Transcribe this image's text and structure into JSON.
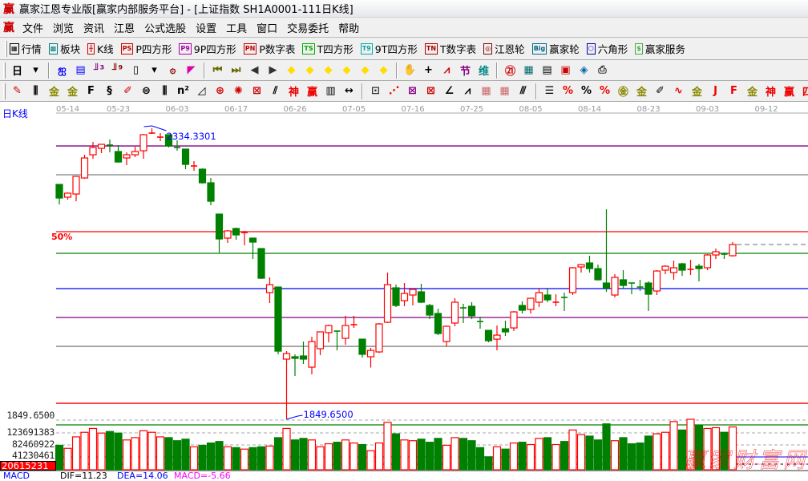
{
  "window": {
    "title": "赢家江恩专业版[赢家内部服务平台] - [上证指数  SH1A0001-111日K线]",
    "logo": "赢"
  },
  "menu": {
    "logo": "赢",
    "items": [
      "文件",
      "浏览",
      "资讯",
      "江恩",
      "公式选股",
      "设置",
      "工具",
      "窗口",
      "交易委托",
      "帮助"
    ]
  },
  "toolbar1": [
    {
      "icon": "quote-table-icon",
      "badge": "▦",
      "color": "#000",
      "label": "行情"
    },
    {
      "icon": "sector-grid-icon",
      "badge": "▩",
      "color": "#008080",
      "label": "板块"
    },
    {
      "icon": "candlestick-icon",
      "badge": "╫",
      "color": "#c00",
      "label": "K线"
    },
    {
      "icon": "ps-icon",
      "badge": "PS",
      "color": "#c00",
      "label": "P四方形"
    },
    {
      "icon": "p9-icon",
      "badge": "P9",
      "color": "#a0a",
      "label": "9P四方形"
    },
    {
      "icon": "pn-icon",
      "badge": "PN",
      "color": "#c00",
      "label": "P数字表"
    },
    {
      "icon": "ts-icon",
      "badge": "TS",
      "color": "#0a0",
      "label": "T四方形"
    },
    {
      "icon": "t9-icon",
      "badge": "T9",
      "color": "#0aa",
      "label": "9T四方形"
    },
    {
      "icon": "tn-icon",
      "badge": "TN",
      "color": "#a00",
      "label": "T数字表"
    },
    {
      "icon": "gann-wheel-icon",
      "badge": "◎",
      "color": "#800",
      "label": "江恩轮"
    },
    {
      "icon": "big-wheel-icon",
      "badge": "Big",
      "color": "#068",
      "label": "赢家轮"
    },
    {
      "icon": "hexagon-icon",
      "badge": "⬡",
      "color": "#00a",
      "label": "六角形"
    },
    {
      "icon": "dollar-icon",
      "badge": "$",
      "color": "#4a4",
      "label": "赢家服务"
    }
  ],
  "toolbar2": {
    "period": "日",
    "items": [
      {
        "icon": "dropdown-arrow-icon",
        "g": "▾",
        "c": "#000"
      },
      {
        "sep": true
      },
      {
        "icon": "map-icon",
        "g": "ஐ",
        "c": "#00f"
      },
      {
        "icon": "clipboard-icon",
        "g": "▤",
        "c": "#00f"
      },
      {
        "icon": "step3-icon",
        "g": "╜³",
        "c": "#808"
      },
      {
        "icon": "step9-icon",
        "g": "╜⁹",
        "c": "#800"
      },
      {
        "icon": "candle-type-icon",
        "g": "▯",
        "c": "#000"
      },
      {
        "icon": "dropdown-arrow-icon",
        "g": "▾",
        "c": "#000"
      },
      {
        "icon": "fractal-icon",
        "g": "۞",
        "c": "#800"
      },
      {
        "icon": "flag-icon",
        "g": "◤",
        "c": "#d0a"
      },
      {
        "sep": true
      },
      {
        "icon": "first-icon",
        "g": "⏮",
        "c": "#660"
      },
      {
        "icon": "last-icon",
        "g": "⏭",
        "c": "#660"
      },
      {
        "icon": "prev-icon",
        "g": "◀",
        "c": "#333"
      },
      {
        "icon": "next-icon",
        "g": "▶",
        "c": "#333"
      },
      {
        "icon": "left-diamond-icon",
        "g": "◆",
        "c": "#fd0"
      },
      {
        "icon": "right-diamond-icon",
        "g": "◆",
        "c": "#fd0"
      },
      {
        "icon": "hzoom-icon",
        "g": "◆",
        "c": "#fd0"
      },
      {
        "icon": "shrink-icon",
        "g": "◆",
        "c": "#fd0"
      },
      {
        "icon": "expand-icon",
        "g": "◆",
        "c": "#fd0"
      },
      {
        "icon": "vzoom-icon",
        "g": "◆",
        "c": "#fd0"
      },
      {
        "sep": true
      },
      {
        "icon": "hand-icon",
        "g": "✋",
        "c": "#000"
      },
      {
        "icon": "crosshair-icon",
        "g": "+",
        "c": "#000"
      },
      {
        "icon": "zigzag-icon",
        "g": "⩘",
        "c": "#c00"
      },
      {
        "icon": "jie-icon",
        "g": "节",
        "c": "#808"
      },
      {
        "icon": "wei-icon",
        "g": "维",
        "c": "#088"
      },
      {
        "sep": true
      },
      {
        "icon": "calendar-icon",
        "g": "㉑",
        "c": "#c00"
      },
      {
        "icon": "calculator-icon",
        "g": "▦",
        "c": "#066"
      },
      {
        "icon": "notepad-icon",
        "g": "▤",
        "c": "#000"
      },
      {
        "icon": "save-icon",
        "g": "▣",
        "c": "#c00"
      },
      {
        "icon": "network-icon",
        "g": "◈",
        "c": "#06a"
      },
      {
        "icon": "printer-icon",
        "g": "⎙",
        "c": "#333"
      }
    ]
  },
  "toolbar3": [
    {
      "icon": "pen-icon",
      "g": "✎",
      "c": "#c00"
    },
    {
      "icon": "vlines-icon",
      "g": "⫼",
      "c": "#000"
    },
    {
      "icon": "gold-icon",
      "g": "金",
      "c": "#880"
    },
    {
      "icon": "gold2-icon",
      "g": "金",
      "c": "#880"
    },
    {
      "icon": "f-icon",
      "g": "F",
      "c": "#000"
    },
    {
      "icon": "spiral-icon",
      "g": "§",
      "c": "#000"
    },
    {
      "icon": "marker-icon",
      "g": "✐",
      "c": "#c00"
    },
    {
      "icon": "circle-icon",
      "g": "⊜",
      "c": "#000"
    },
    {
      "icon": "vlines2-icon",
      "g": "⫼",
      "c": "#000"
    },
    {
      "icon": "n2-icon",
      "g": "n²",
      "c": "#000"
    },
    {
      "icon": "triangle-icon",
      "g": "◿",
      "c": "#000"
    },
    {
      "icon": "target-icon",
      "g": "⊕",
      "c": "#c00"
    },
    {
      "icon": "radar-icon",
      "g": "✺",
      "c": "#c00"
    },
    {
      "icon": "square-web-icon",
      "g": "⊠",
      "c": "#c00"
    },
    {
      "icon": "slash-icon",
      "g": "⫽",
      "c": "#000"
    },
    {
      "icon": "shen-icon",
      "g": "神",
      "c": "#e00"
    },
    {
      "icon": "ying-icon",
      "g": "赢",
      "c": "#e00"
    },
    {
      "icon": "ruler-icon",
      "g": "▥",
      "c": "#000"
    },
    {
      "icon": "width-icon",
      "g": "↔",
      "c": "#000"
    },
    {
      "sep": true
    },
    {
      "icon": "box-icon",
      "g": "⊡",
      "c": "#333"
    },
    {
      "icon": "fan-icon",
      "g": "⋰",
      "c": "#e00"
    },
    {
      "icon": "gann-box-icon",
      "g": "⊠",
      "c": "#808"
    },
    {
      "icon": "gann-fan-icon",
      "g": "⊠",
      "c": "#c00"
    },
    {
      "icon": "angle-icon",
      "g": "∠",
      "c": "#000"
    },
    {
      "icon": "wave-icon",
      "g": "⩘",
      "c": "#000"
    },
    {
      "icon": "grid-icon",
      "g": "▦",
      "c": "#c66"
    },
    {
      "icon": "grid2-icon",
      "g": "▦",
      "c": "#c66"
    },
    {
      "icon": "parallel-icon",
      "g": "⫻",
      "c": "#000"
    },
    {
      "sep": true
    },
    {
      "icon": "table-icon",
      "g": "☰",
      "c": "#000"
    },
    {
      "icon": "pct-line-icon",
      "g": "%",
      "c": "#e00"
    },
    {
      "icon": "percent-icon",
      "g": "%",
      "c": "#000"
    },
    {
      "icon": "pct-lines-icon",
      "g": "%",
      "c": "#e00"
    },
    {
      "icon": "gold-circle-icon",
      "g": "㊎",
      "c": "#880"
    },
    {
      "icon": "gold-lines-icon",
      "g": "金",
      "c": "#880"
    },
    {
      "icon": "pen2-icon",
      "g": "✐",
      "c": "#000"
    },
    {
      "icon": "sine-icon",
      "g": "∿",
      "c": "#e00"
    },
    {
      "icon": "gold3-icon",
      "g": "金",
      "c": "#880"
    },
    {
      "icon": "j-angle-icon",
      "g": "J",
      "c": "#e00"
    },
    {
      "icon": "f-angle-icon",
      "g": "F",
      "c": "#e00"
    },
    {
      "icon": "gold-angle-icon",
      "g": "金",
      "c": "#880"
    },
    {
      "icon": "shen-angle-icon",
      "g": "神",
      "c": "#e00"
    },
    {
      "icon": "ying-angle-icon",
      "g": "赢",
      "c": "#e00"
    },
    {
      "icon": "four-angle-icon",
      "g": "四",
      "c": "#e00"
    }
  ],
  "chart": {
    "period_label": "日K线",
    "high_label": "2334.3301",
    "low_label": "1849.6500",
    "low_axis_label": "1849.6500",
    "pct_label": "50%",
    "watermark": "赢家财富网"
  },
  "volume_axis": {
    "ticks": [
      "123691383",
      "82460922",
      "41230461"
    ],
    "current": "20615231"
  },
  "macd": {
    "name": "MACD",
    "dif": "DIF=11.23",
    "dea": "DEA=14.06",
    "macd": "MACD=-5.66"
  },
  "colors": {
    "up": "#ff0000",
    "down": "#008000",
    "annotation": "#0000ff"
  },
  "chart_data": {
    "type": "candlestick",
    "x_ticks": [
      {
        "label": "05-14",
        "index": 0
      },
      {
        "label": "05-23",
        "index": 6
      },
      {
        "label": "06-03",
        "index": 13
      },
      {
        "label": "06-17",
        "index": 20
      },
      {
        "label": "06-26",
        "index": 27
      },
      {
        "label": "07-05",
        "index": 34
      },
      {
        "label": "07-16",
        "index": 41
      },
      {
        "label": "07-25",
        "index": 48
      },
      {
        "label": "08-05",
        "index": 55
      },
      {
        "label": "08-14",
        "index": 62
      },
      {
        "label": "08-23",
        "index": 69
      },
      {
        "label": "09-03",
        "index": 76
      },
      {
        "label": "09-12",
        "index": 83
      }
    ],
    "price_range": [
      1849.65,
      2334.33
    ],
    "levels": [
      {
        "price": 2304.9,
        "color": "#800080"
      },
      {
        "price": 2256.9,
        "color": "#808080"
      },
      {
        "price": 2162.1,
        "color": "#ff0000"
      },
      {
        "price": 2126.0,
        "color": "#008000"
      },
      {
        "price": 2067.3,
        "color": "#0000ff"
      },
      {
        "price": 2019.2,
        "color": "#800080"
      },
      {
        "price": 1971.1,
        "color": "#808080"
      },
      {
        "price": 1876.3,
        "color": "#ff0000"
      }
    ],
    "ohlc": [
      [
        2240.8,
        2240.8,
        2207.5,
        2218.1
      ],
      [
        2219.5,
        2227.5,
        2215.5,
        2226.2
      ],
      [
        2224.8,
        2254.2,
        2212.8,
        2254.2
      ],
      [
        2251.5,
        2290.2,
        2250.2,
        2284.9
      ],
      [
        2290.2,
        2311.6,
        2283.6,
        2302.3
      ],
      [
        2300.9,
        2307.6,
        2292.9,
        2307.6
      ],
      [
        2306.3,
        2315.6,
        2294.2,
        2304.9
      ],
      [
        2295.6,
        2306.3,
        2276.9,
        2278.2
      ],
      [
        2284.9,
        2294.2,
        2272.9,
        2290.2
      ],
      [
        2290.2,
        2303.6,
        2286.2,
        2295.6
      ],
      [
        2296.9,
        2325.0,
        2283.6,
        2323.6
      ],
      [
        2326.0,
        2334.33,
        2325.0,
        2326.3
      ],
      [
        2319.6,
        2326.3,
        2312.9,
        2319.6
      ],
      [
        2323.6,
        2323.6,
        2302.3,
        2304.9
      ],
      [
        2302.3,
        2314.3,
        2296.9,
        2302.0
      ],
      [
        2299.6,
        2299.6,
        2266.2,
        2274.2
      ],
      [
        2271.5,
        2279.6,
        2263.5,
        2271.5
      ],
      [
        2266.2,
        2267.5,
        2242.2,
        2243.5
      ],
      [
        2243.5,
        2251.5,
        2206.1,
        2212.8
      ],
      [
        2191.4,
        2191.4,
        2127.3,
        2150.0
      ],
      [
        2151.4,
        2164.7,
        2143.4,
        2163.4
      ],
      [
        2167.4,
        2168.7,
        2148.7,
        2156.7
      ],
      [
        2160.7,
        2163.4,
        2139.4,
        2160.7
      ],
      [
        2151.4,
        2151.4,
        2116.7,
        2144.7
      ],
      [
        2134.0,
        2134.0,
        2083.3,
        2084.6
      ],
      [
        2060.6,
        2086.0,
        2043.2,
        2073.9
      ],
      [
        2069.9,
        2069.9,
        1957.8,
        1963.1
      ],
      [
        1949.8,
        1963.1,
        1849.65,
        1959.1
      ],
      [
        1953.8,
        1957.8,
        1921.7,
        1951.1
      ],
      [
        1955.1,
        1979.1,
        1941.8,
        1949.8
      ],
      [
        1936.4,
        1987.1,
        1924.4,
        1979.1
      ],
      [
        1967.1,
        1995.2,
        1956.4,
        1995.2
      ],
      [
        1994.0,
        2007.2,
        1977.8,
        2005.8
      ],
      [
        1996.5,
        1996.5,
        1964.4,
        1995.2
      ],
      [
        1984.5,
        2021.9,
        1973.8,
        2005.8
      ],
      [
        2007.2,
        2021.9,
        2001.8,
        2007.2
      ],
      [
        1983.1,
        1983.1,
        1952.4,
        1957.8
      ],
      [
        1953.8,
        1968.5,
        1935.8,
        1964.4
      ],
      [
        1961.8,
        2009.9,
        1960.4,
        2008.5
      ],
      [
        2011.2,
        2094.0,
        2009.9,
        2073.9
      ],
      [
        2068.6,
        2073.9,
        2036.5,
        2039.2
      ],
      [
        2047.2,
        2076.6,
        2037.9,
        2059.2
      ],
      [
        2056.6,
        2067.3,
        2039.2,
        2065.9
      ],
      [
        2061.9,
        2075.3,
        2043.2,
        2044.6
      ],
      [
        2039.2,
        2041.9,
        2016.5,
        2023.2
      ],
      [
        2025.9,
        2033.9,
        1989.8,
        1992.5
      ],
      [
        1979.1,
        2005.8,
        1971.1,
        2004.5
      ],
      [
        2009.9,
        2051.2,
        2004.5,
        2044.6
      ],
      [
        2035.2,
        2041.9,
        2009.9,
        2035.0
      ],
      [
        2037.9,
        2044.6,
        2016.5,
        2021.9
      ],
      [
        2012.5,
        2020.5,
        2000.5,
        2012.3
      ],
      [
        1997.8,
        1997.8,
        1977.8,
        1980.5
      ],
      [
        1983.1,
        2005.8,
        1964.4,
        1989.8
      ],
      [
        2000.5,
        2013.9,
        1988.5,
        1995.2
      ],
      [
        2001.8,
        2029.9,
        1996.5,
        2028.5
      ],
      [
        2039.2,
        2045.9,
        2025.9,
        2031.2
      ],
      [
        2032.5,
        2051.2,
        2025.9,
        2051.2
      ],
      [
        2044.6,
        2067.3,
        2036.5,
        2060.6
      ],
      [
        2056.6,
        2068.6,
        2044.6,
        2048.6
      ],
      [
        2044.6,
        2057.9,
        2037.9,
        2044.6
      ],
      [
        2052.6,
        2060.6,
        2029.9,
        2052.4
      ],
      [
        2060.6,
        2103.3,
        2056.6,
        2102.0
      ],
      [
        2103.3,
        2107.3,
        2094.0,
        2107.3
      ],
      [
        2110.0,
        2122.0,
        2094.0,
        2100.6
      ],
      [
        2100.6,
        2107.3,
        2080.6,
        2082.0
      ],
      [
        2076.6,
        2199.4,
        2061.9,
        2068.6
      ],
      [
        2056.6,
        2091.3,
        2052.6,
        2086.0
      ],
      [
        2082.0,
        2098.0,
        2067.3,
        2072.6
      ],
      [
        2076.6,
        2076.6,
        2057.9,
        2075.3
      ],
      [
        2069.9,
        2082.0,
        2063.3,
        2068.6
      ],
      [
        2076.6,
        2079.3,
        2029.9,
        2057.9
      ],
      [
        2063.3,
        2098.0,
        2056.6,
        2096.6
      ],
      [
        2098.0,
        2106.0,
        2091.3,
        2104.6
      ],
      [
        2094.0,
        2114.0,
        2082.0,
        2102.0
      ],
      [
        2108.6,
        2110.0,
        2088.6,
        2098.0
      ],
      [
        2099.3,
        2115.3,
        2089.9,
        2099.3
      ],
      [
        2104.6,
        2108.6,
        2079.3,
        2100.6
      ],
      [
        2102.0,
        2124.7,
        2098.0,
        2123.3
      ],
      [
        2123.3,
        2134.0,
        2116.7,
        2128.7
      ],
      [
        2124.7,
        2127.3,
        2116.7,
        2124.5
      ],
      [
        2122.0,
        2144.7,
        2120.7,
        2140.7
      ]
    ],
    "volume": [
      82500000,
      72200000,
      110800000,
      126300000,
      139200000,
      123700000,
      128900000,
      123700000,
      100500000,
      108200000,
      131400000,
      126300000,
      110800000,
      108200000,
      97900000,
      103100000,
      77300000,
      82500000,
      90200000,
      95300000,
      77300000,
      74700000,
      69600000,
      74700000,
      77300000,
      79900000,
      108200000,
      139200000,
      100500000,
      105700000,
      100500000,
      77300000,
      87600000,
      92800000,
      100500000,
      90200000,
      85000000,
      64400000,
      90200000,
      159800000,
      121100000,
      100500000,
      97900000,
      103100000,
      92800000,
      105700000,
      82500000,
      108200000,
      105700000,
      97900000,
      74700000,
      43800000,
      77300000,
      69600000,
      90200000,
      92800000,
      85000000,
      105700000,
      108200000,
      85000000,
      95300000,
      134000000,
      118500000,
      113400000,
      100500000,
      154600000,
      97900000,
      108200000,
      87600000,
      90200000,
      113400000,
      121100000,
      126300000,
      162400000,
      134000000,
      170100000,
      149500000,
      139200000,
      141700000,
      126300000,
      144300000
    ],
    "volume_ticks": [
      123691383,
      82460922,
      41230461
    ]
  }
}
